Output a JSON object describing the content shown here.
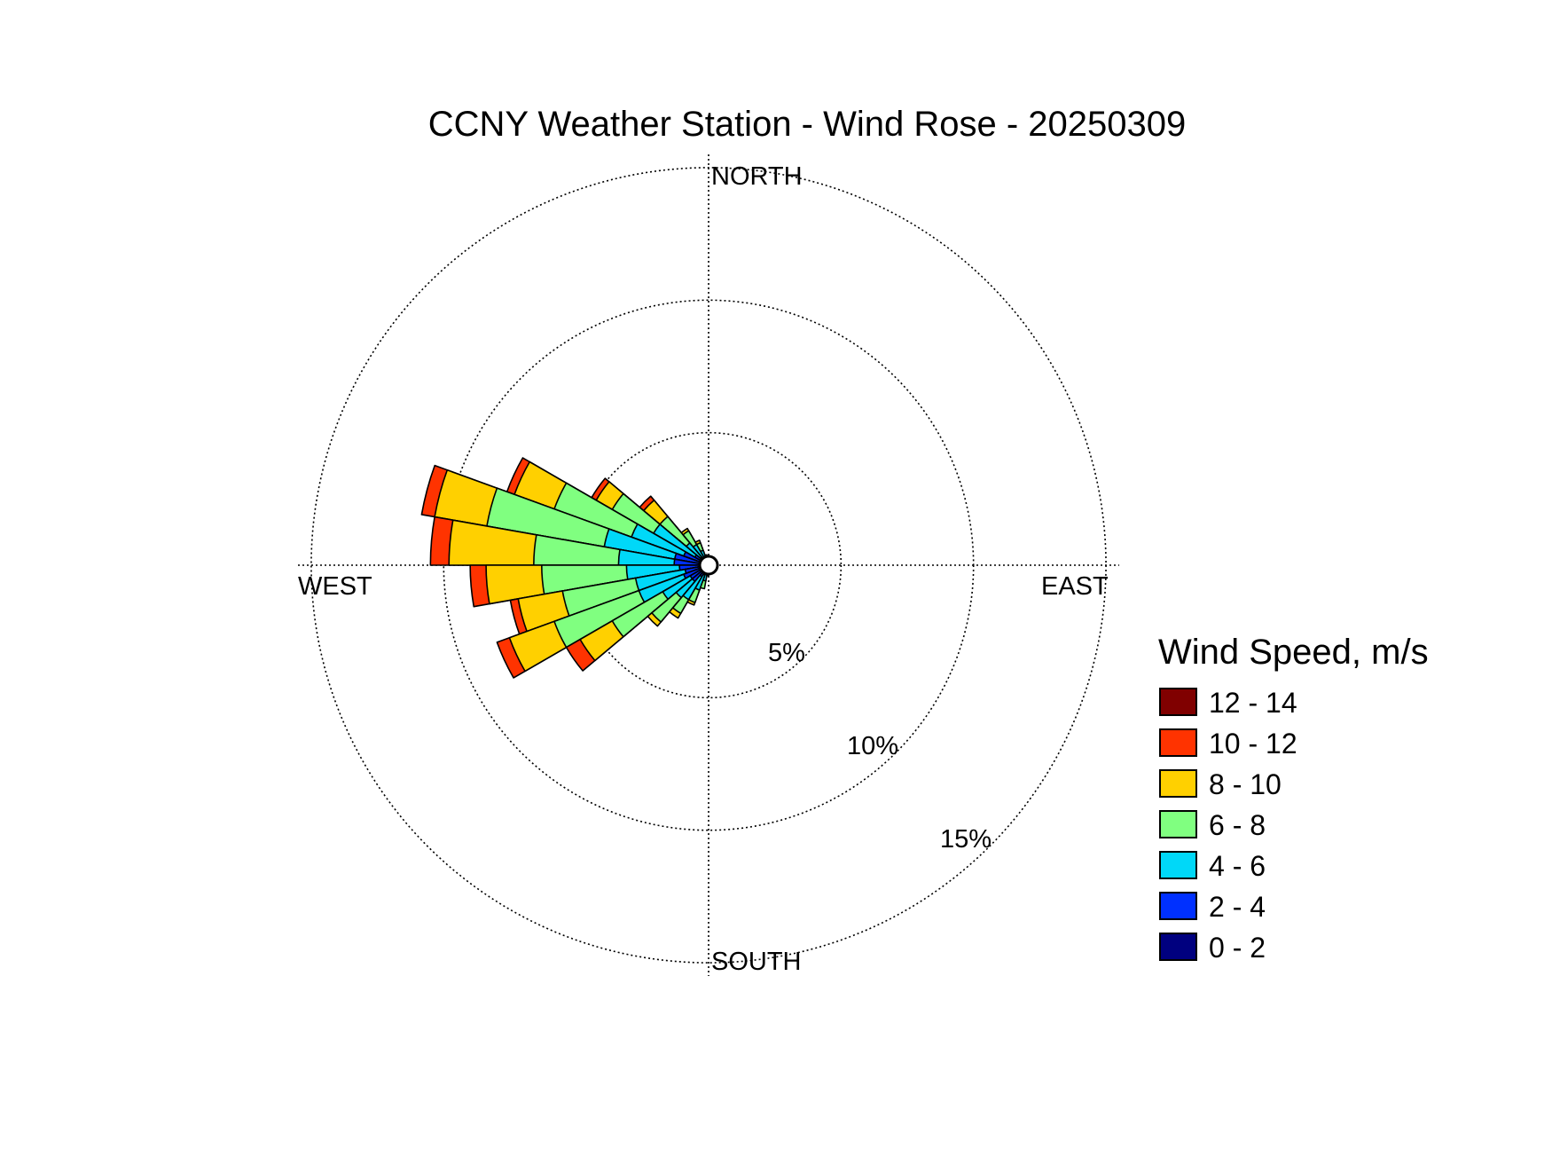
{
  "chart_data": {
    "type": "wind-rose",
    "title": "CCNY Weather Station - Wind Rose - 20250309",
    "directions": {
      "north": "NORTH",
      "south": "SOUTH",
      "east": "EAST",
      "west": "WEST"
    },
    "rings": [
      {
        "value": 5,
        "label": "5%"
      },
      {
        "value": 10,
        "label": "10%"
      },
      {
        "value": 15,
        "label": "15%"
      }
    ],
    "rmax": 15.5,
    "legend": {
      "title": "Wind Speed, m/s",
      "placement": "right",
      "items": [
        {
          "label": "12 - 14",
          "color": "#800000"
        },
        {
          "label": "10 - 12",
          "color": "#ff3300"
        },
        {
          "label": "8 - 10",
          "color": "#ffd000"
        },
        {
          "label": "6 - 8",
          "color": "#80ff80"
        },
        {
          "label": "4 - 6",
          "color": "#00d8f8"
        },
        {
          "label": "2 - 4",
          "color": "#0030ff"
        },
        {
          "label": "0 - 2",
          "color": "#00007f"
        }
      ]
    },
    "bin_width_deg": 10,
    "bins": [
      {
        "center_deg": 315,
        "cumulative": [
          0.1,
          0.4,
          1.1,
          2.4,
          3.2,
          3.4,
          3.4
        ]
      },
      {
        "center_deg": 305,
        "cumulative": [
          0.1,
          0.6,
          2.4,
          4.2,
          4.9,
          5.1,
          5.1
        ]
      },
      {
        "center_deg": 295,
        "cumulative": [
          0.1,
          1.0,
          3.1,
          6.2,
          7.8,
          8.1,
          8.1
        ]
      },
      {
        "center_deg": 285,
        "cumulative": [
          0.1,
          1.3,
          4.0,
          8.5,
          10.5,
          11.0,
          11.0
        ]
      },
      {
        "center_deg": 275,
        "cumulative": [
          0.1,
          1.3,
          3.4,
          6.6,
          9.8,
          10.5,
          10.5
        ]
      },
      {
        "center_deg": 265,
        "cumulative": [
          0.1,
          1.1,
          3.1,
          6.3,
          8.4,
          9.0,
          9.0
        ]
      },
      {
        "center_deg": 255,
        "cumulative": [
          0.1,
          0.9,
          2.8,
          5.6,
          7.3,
          7.6,
          7.6
        ]
      },
      {
        "center_deg": 245,
        "cumulative": [
          0.1,
          1.0,
          2.8,
          6.2,
          8.0,
          8.5,
          8.5
        ]
      },
      {
        "center_deg": 235,
        "cumulative": [
          0.1,
          0.8,
          2.0,
          4.2,
          5.6,
          6.2,
          6.2
        ]
      },
      {
        "center_deg": 225,
        "cumulative": [
          0.1,
          0.8,
          1.6,
          2.8,
          3.0,
          3.0,
          3.0
        ]
      },
      {
        "center_deg": 215,
        "cumulative": [
          0.1,
          0.5,
          1.5,
          2.1,
          2.3,
          2.3,
          2.3
        ]
      },
      {
        "center_deg": 205,
        "cumulative": [
          0.1,
          0.4,
          1.0,
          1.5,
          1.6,
          1.6,
          1.6
        ]
      },
      {
        "center_deg": 195,
        "cumulative": [
          0.1,
          0.3,
          0.6,
          0.9,
          0.9,
          0.9,
          0.9
        ]
      },
      {
        "center_deg": 185,
        "cumulative": [
          0.1,
          0.3,
          0.4,
          0.4,
          0.4,
          0.4,
          0.4
        ]
      },
      {
        "center_deg": 325,
        "cumulative": [
          0.1,
          0.3,
          0.9,
          1.5,
          1.6,
          1.6,
          1.6
        ]
      },
      {
        "center_deg": 335,
        "cumulative": [
          0.1,
          0.3,
          0.6,
          0.9,
          1.0,
          1.0,
          1.0
        ]
      },
      {
        "center_deg": 345,
        "cumulative": [
          0.1,
          0.2,
          0.4,
          0.4,
          0.4,
          0.4,
          0.4
        ]
      },
      {
        "center_deg": 355,
        "cumulative": [
          0.2,
          0.2,
          0.2,
          0.2,
          0.2,
          0.2,
          0.2
        ]
      },
      {
        "center_deg": 5,
        "cumulative": [
          0.2,
          0.2,
          0.2,
          0.2,
          0.2,
          0.2,
          0.2
        ]
      },
      {
        "center_deg": 15,
        "cumulative": [
          0.2,
          0.2,
          0.2,
          0.2,
          0.2,
          0.2,
          0.2
        ]
      },
      {
        "center_deg": 25,
        "cumulative": [
          0.2,
          0.2,
          0.2,
          0.2,
          0.2,
          0.2,
          0.2
        ]
      },
      {
        "center_deg": 35,
        "cumulative": [
          0.2,
          0.2,
          0.2,
          0.2,
          0.2,
          0.2,
          0.2
        ]
      },
      {
        "center_deg": 45,
        "cumulative": [
          0.2,
          0.2,
          0.2,
          0.2,
          0.2,
          0.2,
          0.2
        ]
      },
      {
        "center_deg": 55,
        "cumulative": [
          0.2,
          0.2,
          0.2,
          0.2,
          0.2,
          0.2,
          0.2
        ]
      },
      {
        "center_deg": 65,
        "cumulative": [
          0.2,
          0.2,
          0.2,
          0.2,
          0.2,
          0.2,
          0.2
        ]
      },
      {
        "center_deg": 75,
        "cumulative": [
          0.2,
          0.2,
          0.2,
          0.2,
          0.2,
          0.2,
          0.2
        ]
      },
      {
        "center_deg": 85,
        "cumulative": [
          0.2,
          0.2,
          0.2,
          0.2,
          0.2,
          0.2,
          0.2
        ]
      },
      {
        "center_deg": 95,
        "cumulative": [
          0.2,
          0.2,
          0.2,
          0.2,
          0.2,
          0.2,
          0.2
        ]
      },
      {
        "center_deg": 105,
        "cumulative": [
          0.2,
          0.2,
          0.2,
          0.2,
          0.2,
          0.2,
          0.2
        ]
      },
      {
        "center_deg": 115,
        "cumulative": [
          0.2,
          0.2,
          0.2,
          0.2,
          0.2,
          0.2,
          0.2
        ]
      },
      {
        "center_deg": 125,
        "cumulative": [
          0.2,
          0.2,
          0.2,
          0.2,
          0.2,
          0.2,
          0.2
        ]
      },
      {
        "center_deg": 135,
        "cumulative": [
          0.2,
          0.2,
          0.2,
          0.2,
          0.2,
          0.2,
          0.2
        ]
      },
      {
        "center_deg": 145,
        "cumulative": [
          0.2,
          0.2,
          0.2,
          0.2,
          0.2,
          0.2,
          0.2
        ]
      },
      {
        "center_deg": 155,
        "cumulative": [
          0.2,
          0.2,
          0.2,
          0.2,
          0.2,
          0.2,
          0.2
        ]
      },
      {
        "center_deg": 165,
        "cumulative": [
          0.2,
          0.2,
          0.2,
          0.2,
          0.2,
          0.2,
          0.2
        ]
      },
      {
        "center_deg": 175,
        "cumulative": [
          0.2,
          0.2,
          0.2,
          0.2,
          0.2,
          0.2,
          0.2
        ]
      }
    ]
  }
}
